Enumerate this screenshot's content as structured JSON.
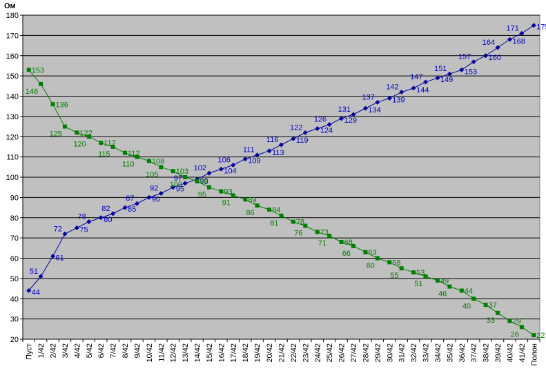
{
  "chart_data": {
    "type": "line",
    "title": "",
    "xlabel": "",
    "ylabel": "Ом",
    "ylim": [
      20,
      180
    ],
    "yticks": [
      "20",
      "30",
      "40",
      "50",
      "60",
      "70",
      "80",
      "90",
      "100",
      "110",
      "120",
      "130",
      "140",
      "150",
      "160",
      "170",
      "180"
    ],
    "grid": "horizontal",
    "background_color": "#C0C0C0",
    "categories": [
      "Пуст",
      "1/42",
      "2/42",
      "3/42",
      "4/42",
      "5/42",
      "6/42",
      "7/42",
      "8/42",
      "9/42",
      "10/42",
      "11/42",
      "12/42",
      "13/42",
      "14/42",
      "15/42",
      "16/42",
      "17/42",
      "18/42",
      "19/42",
      "20/42",
      "21/42",
      "22/42",
      "23/42",
      "24/42",
      "25/42",
      "26/42",
      "27/42",
      "28/42",
      "29/42",
      "30/42",
      "31/42",
      "32/42",
      "33/42",
      "34/42",
      "35/42",
      "36/42",
      "37/42",
      "38/42",
      "39/42",
      "40/42",
      "41/42",
      "Полон"
    ],
    "series": [
      {
        "marker": "diamond",
        "color": "#0000A0",
        "label_color": "#0000CC",
        "values": [
          44,
          51,
          61,
          72,
          75,
          78,
          80,
          82,
          85,
          87,
          90,
          92,
          95,
          97,
          99,
          102,
          104,
          106,
          109,
          111,
          113,
          116,
          119,
          122,
          124,
          126,
          129,
          131,
          134,
          137,
          139,
          142,
          144,
          147,
          149,
          151,
          153,
          157,
          160,
          164,
          168,
          171,
          175
        ]
      },
      {
        "marker": "square",
        "color": "#008000",
        "label_color": "#008000",
        "values": [
          153,
          146,
          136,
          125,
          122,
          120,
          117,
          115,
          112,
          110,
          108,
          105,
          103,
          100,
          98,
          95,
          93,
          91,
          89,
          86,
          84,
          81,
          78,
          76,
          73,
          71,
          68,
          66,
          63,
          60,
          58,
          55,
          53,
          51,
          49,
          46,
          44,
          40,
          37,
          33,
          29,
          26,
          22
        ]
      }
    ]
  }
}
